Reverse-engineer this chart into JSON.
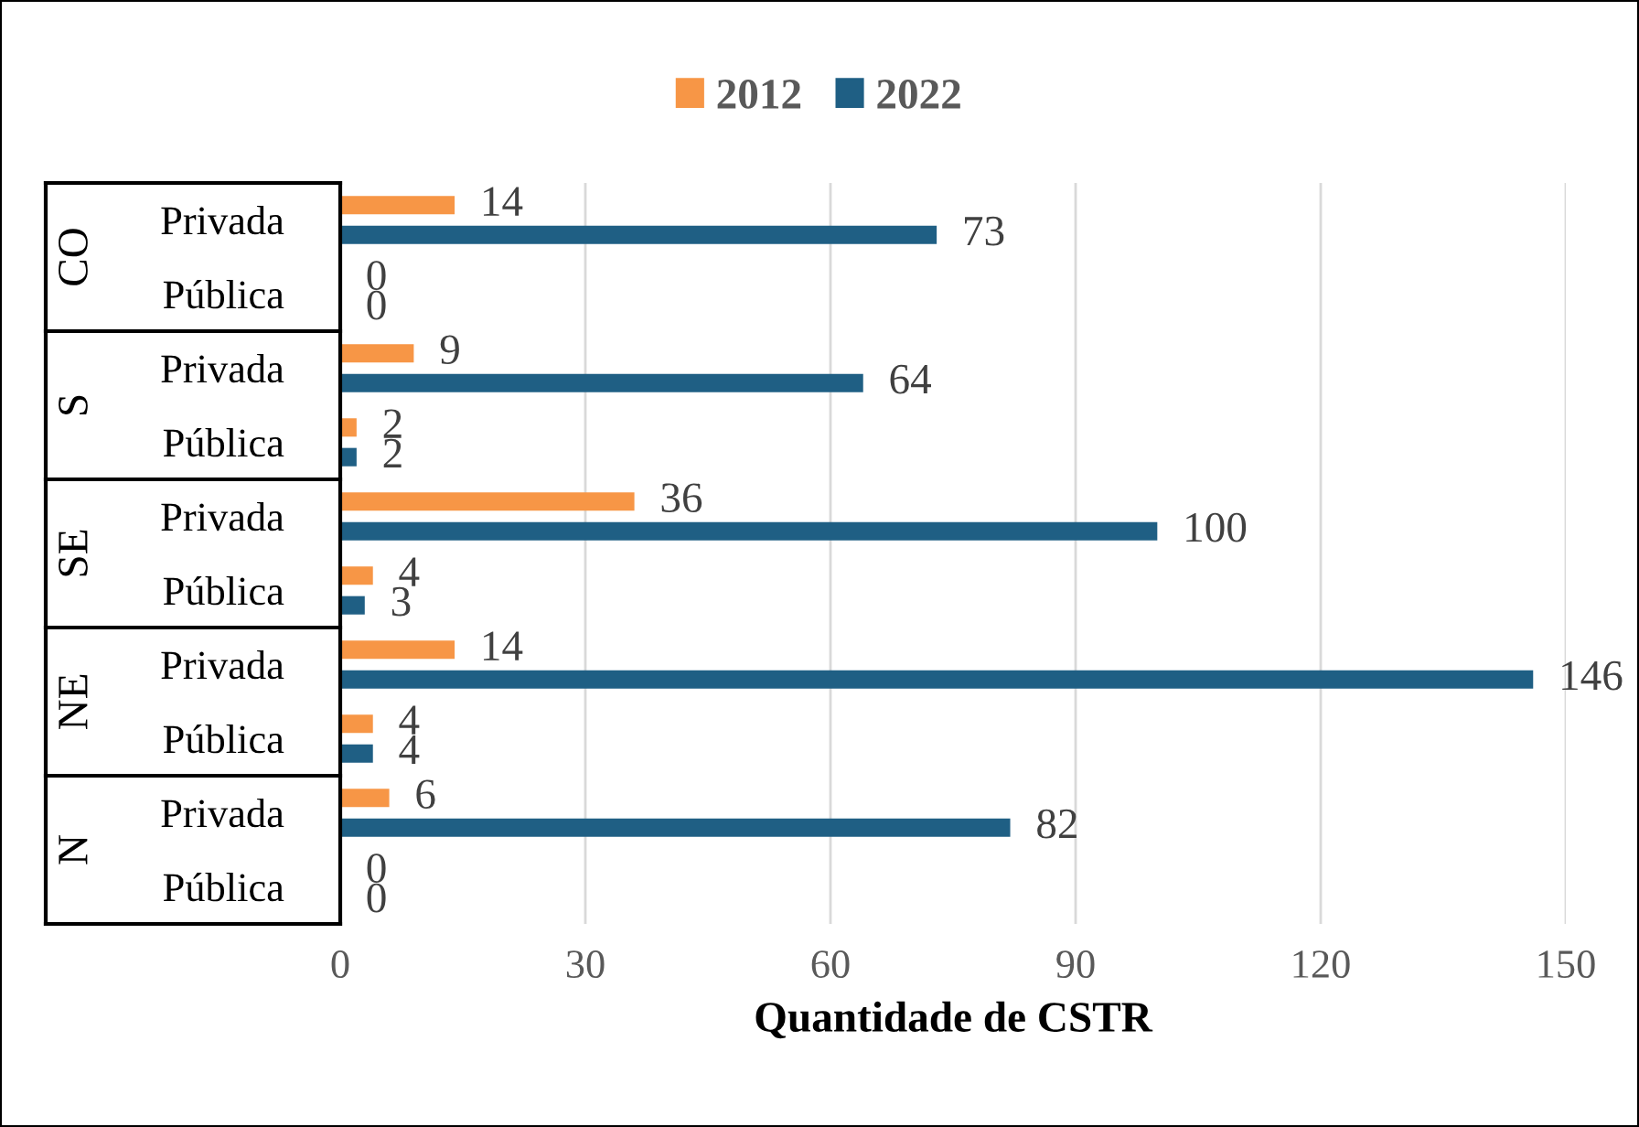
{
  "chart_data": {
    "type": "bar",
    "orientation": "horizontal",
    "xlabel": "Quantidade de CSTR",
    "categories": [
      "Privada",
      "Pública",
      "Privada",
      "Pública",
      "Privada",
      "Pública",
      "Privada",
      "Pública",
      "Privada",
      "Pública"
    ],
    "annotations": [
      "CO",
      "S",
      "SE",
      "NE",
      "N"
    ],
    "series": [
      {
        "name": "2012",
        "color": "#f79646",
        "values": [
          14,
          0,
          9,
          2,
          36,
          4,
          14,
          4,
          6,
          0
        ]
      },
      {
        "name": "2022",
        "color": "#1f5f84",
        "values": [
          73,
          0,
          64,
          2,
          100,
          3,
          146,
          4,
          82,
          0
        ]
      }
    ],
    "xlim": [
      0,
      150
    ],
    "xticks": [
      0,
      30,
      60,
      90,
      120,
      150
    ],
    "grid": "x",
    "legend": "top",
    "data_labels": true
  }
}
